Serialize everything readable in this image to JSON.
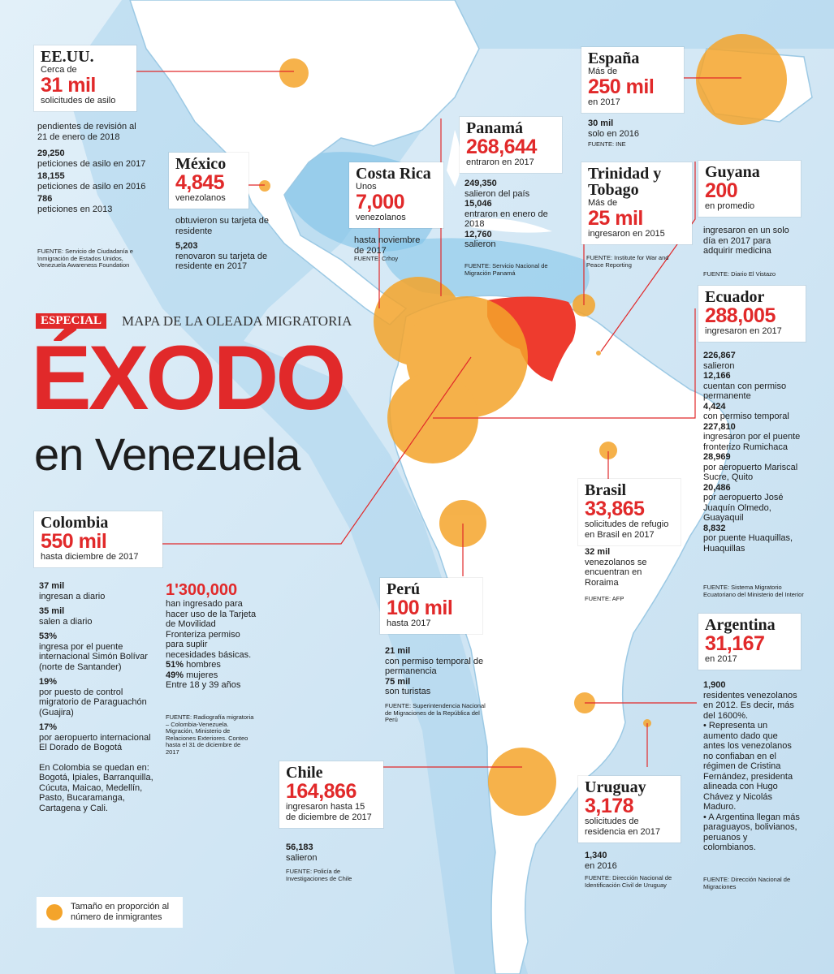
{
  "header": {
    "tag": "ESPECIAL",
    "subtitle": "MAPA DE LA OLEADA MIGRATORIA",
    "title": "ÉXODO",
    "title_line2": "en Venezuela"
  },
  "colors": {
    "accent": "#e1292a",
    "circle": "#f4a42b",
    "ocean": "#cfe6f5",
    "land": "#ffffff",
    "venezuela": "#ee3b2e"
  },
  "usa": {
    "name": "EE.UU.",
    "pre": "Cerca de",
    "big": "31 mil",
    "post": "solicitudes de asilo",
    "note": "pendientes de revisión al 21 de enero de 2018",
    "stats": [
      {
        "n": "29,250",
        "t": "peticiones de asilo en 2017"
      },
      {
        "n": "18,155",
        "t": "peticiones de asilo en 2016"
      },
      {
        "n": "786",
        "t": "peticiones en 2013"
      }
    ],
    "source": "FUENTE: Servicio de Ciudadanía e Inmigración de Estados Unidos, Venezuela Awareness Foundation"
  },
  "mexico": {
    "name": "México",
    "big": "4,845",
    "post": "venezolanos",
    "t1": "obtuvieron su tarjeta de residente",
    "n2": "5,203",
    "t2": "renovaron su tarjeta de residente en 2017"
  },
  "costa_rica": {
    "name": "Costa Rica",
    "pre": "Unos",
    "big": "7,000",
    "post": "venezolanos",
    "t1": "hasta noviembre de 2017",
    "source": "FUENTE: Crhoy"
  },
  "panama": {
    "name": "Panamá",
    "big": "268,644",
    "post": "entraron en 2017",
    "stats": [
      {
        "n": "249,350",
        "t": "salieron del país"
      },
      {
        "n": "15,046",
        "t": "entraron en enero de 2018"
      },
      {
        "n": "12,760",
        "t": "salieron"
      }
    ],
    "source": "FUENTE: Servicio Nacional de Migración Panamá"
  },
  "trinidad": {
    "name": "Trinidad y Tobago",
    "pre": "Más de",
    "big": "25 mil",
    "post": "ingresaron en 2015",
    "source": "FUENTE: Institute for War and Peace Reporting"
  },
  "spain": {
    "name": "España",
    "pre": "Más de",
    "big": "250 mil",
    "post": "en 2017",
    "n2": "30 mil",
    "t2": "solo en 2016",
    "source": "FUENTE: INE"
  },
  "guyana": {
    "name": "Guyana",
    "big": "200",
    "post": "en promedio",
    "t1": "ingresaron en un solo día en 2017 para adquirir medicina",
    "source": "FUENTE: Diario El Vistazo"
  },
  "ecuador": {
    "name": "Ecuador",
    "big": "288,005",
    "post": "ingresaron en 2017",
    "stats": [
      {
        "n": "226,867",
        "t": "salieron"
      },
      {
        "n": "12,166",
        "t": "cuentan con permiso permanente"
      },
      {
        "n": "4,424",
        "t": "con permiso temporal"
      },
      {
        "n": "227,810",
        "t": "ingresaron por el puente fronterizo Rumichaca"
      },
      {
        "n": "28,969",
        "t": "por aeropuerto Mariscal Sucre, Quito"
      },
      {
        "n": "20,486",
        "t": "por aeropuerto José Juaquín Olmedo, Guayaquil"
      },
      {
        "n": "8,832",
        "t": "por puente Huaquillas, Huaquillas"
      }
    ],
    "source": "FUENTE: Sistema Migratorio Ecuatoriano del Ministerio del Interior"
  },
  "colombia": {
    "name": "Colombia",
    "big": "550 mil",
    "post": "hasta diciembre de 2017",
    "stats": [
      {
        "n": "37 mil",
        "t": "ingresan a diario"
      },
      {
        "n": "35 mil",
        "t": "salen a diario"
      },
      {
        "n": "53%",
        "t": "ingresa por el puente internacional Simón Bolívar (norte de Santander)"
      },
      {
        "n": "19%",
        "t": "por puesto de control migratorio de Paraguachón (Guajira)"
      },
      {
        "n": "17%",
        "t": "por aeropuerto internacional El Dorado de Bogotá"
      }
    ],
    "cities": "En Colombia se quedan en: Bogotá, Ipiales, Barranquilla, Cúcuta, Maicao, Medellín, Pasto, Bucaramanga, Cartagena y Cali.",
    "extra_big": "1'300,000",
    "extra_t": "han ingresado para hacer uso de la Tarjeta de Movilidad Fronteriza permiso para suplir necesidades básicas.",
    "men_pct": "51%",
    "men_t": "hombres",
    "women_pct": "49%",
    "women_t": "mujeres",
    "age": "Entre 18 y 39 años",
    "source": "FUENTE: Radiografía migratoria – Colombia-Venezuela. Migración, Ministerio de Relaciones Exteriores. Conteo hasta el 31 de diciembre de 2017"
  },
  "brasil": {
    "name": "Brasil",
    "big": "33,865",
    "post": "solicitudes de refugio en Brasil en 2017",
    "n2": "32 mil",
    "t2": "venezolanos se encuentran en Roraima",
    "source": "FUENTE: AFP"
  },
  "peru": {
    "name": "Perú",
    "big": "100 mil",
    "post": "hasta 2017",
    "stats": [
      {
        "n": "21 mil",
        "t": "con permiso temporal de permanencia"
      },
      {
        "n": "75 mil",
        "t": "son turistas"
      }
    ],
    "source": "FUENTE: Superintendencia Nacional de Migraciones de la República del Perú"
  },
  "argentina": {
    "name": "Argentina",
    "big": "31,167",
    "post": "en 2017",
    "n2": "1,900",
    "t2": "residentes venezolanos en 2012. Es decir, más del 1600%.",
    "b1": "• Representa un aumento dado que antes los venezolanos no confiaban en el régimen de Cristina Fernández, presidenta alineada con Hugo Chávez y Nicolás Maduro.",
    "b2": "• A Argentina llegan más paraguayos, bolivianos, peruanos y colombianos.",
    "source": "FUENTE: Dirección Nacional de Migraciones"
  },
  "chile": {
    "name": "Chile",
    "big": "164,866",
    "post": "ingresaron hasta 15 de diciembre de 2017",
    "n2": "56,183",
    "t2": "salieron",
    "source": "FUENTE: Policía de Investigaciones de Chile"
  },
  "uruguay": {
    "name": "Uruguay",
    "big": "3,178",
    "post": "solicitudes de residencia en 2017",
    "n2": "1,340",
    "t2": "en 2016",
    "source": "FUENTE: Dirección Nacional de Identificación Civil de Uruguay"
  },
  "legend": {
    "text": "Tamaño en proporción al número de inmigrantes"
  }
}
